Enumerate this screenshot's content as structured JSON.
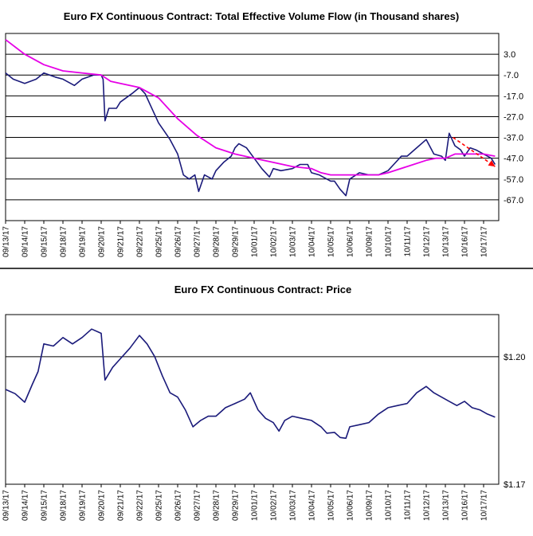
{
  "colors": {
    "price_line": "#1a1a7a",
    "flow_line": "#1a1a7a",
    "moving_average": "#e600e6",
    "trend_arrow": "#ff0000",
    "gridline": "#000000",
    "background": "#ffffff"
  },
  "chart_data": [
    {
      "type": "line",
      "title": "Euro FX Continuous Contract: Total Effective Volume Flow (in Thousand shares)",
      "xlabel": "",
      "ylabel": "",
      "y_ticks": [
        "3.0",
        "-7.0",
        "-17.0",
        "-27.0",
        "-37.0",
        "-47.0",
        "-57.0",
        "-67.0"
      ],
      "ylim": [
        -77,
        13
      ],
      "grid": true,
      "x_ticks": [
        "09/13/17",
        "09/14/17",
        "09/15/17",
        "09/18/17",
        "09/19/17",
        "09/20/17",
        "09/21/17",
        "09/22/17",
        "09/25/17",
        "09/26/17",
        "09/27/17",
        "09/28/17",
        "09/29/17",
        "10/01/17",
        "10/02/17",
        "10/03/17",
        "10/04/17",
        "10/05/17",
        "10/06/17",
        "10/09/17",
        "10/10/17",
        "10/11/17",
        "10/12/17",
        "10/13/17",
        "10/16/17",
        "10/17/17"
      ],
      "series": [
        {
          "role": "volume flow",
          "points": [
            [
              0,
              -6
            ],
            [
              0.4,
              -9
            ],
            [
              1.0,
              -11
            ],
            [
              1.6,
              -9
            ],
            [
              2.0,
              -6
            ],
            [
              2.6,
              -8
            ],
            [
              3.0,
              -9
            ],
            [
              3.6,
              -12
            ],
            [
              4.0,
              -9
            ],
            [
              4.6,
              -7
            ],
            [
              5.0,
              -7
            ],
            [
              5.1,
              -9
            ],
            [
              5.2,
              -29
            ],
            [
              5.4,
              -23
            ],
            [
              5.8,
              -23
            ],
            [
              6.0,
              -20
            ],
            [
              6.6,
              -16
            ],
            [
              7.0,
              -13
            ],
            [
              7.3,
              -16
            ],
            [
              7.6,
              -22
            ],
            [
              8.0,
              -30
            ],
            [
              8.3,
              -34
            ],
            [
              8.6,
              -38
            ],
            [
              9.0,
              -45
            ],
            [
              9.3,
              -55
            ],
            [
              9.6,
              -57
            ],
            [
              9.9,
              -55
            ],
            [
              10.1,
              -63
            ],
            [
              10.4,
              -55
            ],
            [
              10.8,
              -57
            ],
            [
              11.0,
              -53
            ],
            [
              11.4,
              -49
            ],
            [
              11.8,
              -46
            ],
            [
              12.0,
              -42
            ],
            [
              12.2,
              -40
            ],
            [
              12.6,
              -42
            ],
            [
              13.0,
              -47
            ],
            [
              13.4,
              -52
            ],
            [
              13.8,
              -56
            ],
            [
              14.0,
              -52
            ],
            [
              14.4,
              -53
            ],
            [
              15.0,
              -52
            ],
            [
              15.4,
              -50
            ],
            [
              15.8,
              -50
            ],
            [
              16.0,
              -54
            ],
            [
              16.4,
              -55
            ],
            [
              17.0,
              -58
            ],
            [
              17.2,
              -58
            ],
            [
              17.5,
              -62
            ],
            [
              17.8,
              -65
            ],
            [
              18.0,
              -57
            ],
            [
              18.5,
              -54
            ],
            [
              19.0,
              -55
            ],
            [
              19.5,
              -55
            ],
            [
              20.0,
              -53
            ],
            [
              20.3,
              -50
            ],
            [
              20.7,
              -46
            ],
            [
              21.0,
              -46
            ],
            [
              21.5,
              -42
            ],
            [
              22.0,
              -38
            ],
            [
              22.4,
              -45
            ],
            [
              22.8,
              -46
            ],
            [
              23.0,
              -48
            ],
            [
              23.2,
              -35
            ],
            [
              23.5,
              -41
            ],
            [
              23.8,
              -43
            ],
            [
              24.0,
              -46
            ],
            [
              24.3,
              -42
            ],
            [
              24.6,
              -43
            ],
            [
              25.0,
              -45
            ],
            [
              25.4,
              -47
            ],
            [
              25.6,
              -50
            ]
          ]
        },
        {
          "role": "moving average",
          "points": [
            [
              0,
              10
            ],
            [
              1.0,
              3
            ],
            [
              2.0,
              -2
            ],
            [
              3.0,
              -5
            ],
            [
              4.0,
              -6
            ],
            [
              5.0,
              -7
            ],
            [
              5.5,
              -10
            ],
            [
              6.0,
              -11
            ],
            [
              7.0,
              -13
            ],
            [
              8.0,
              -18
            ],
            [
              9.0,
              -28
            ],
            [
              10.0,
              -36
            ],
            [
              11.0,
              -42
            ],
            [
              12.0,
              -45
            ],
            [
              13.0,
              -47
            ],
            [
              14.0,
              -49
            ],
            [
              15.0,
              -51
            ],
            [
              16.0,
              -52
            ],
            [
              16.5,
              -54
            ],
            [
              17.0,
              -55
            ],
            [
              18.0,
              -55
            ],
            [
              19.0,
              -55
            ],
            [
              19.5,
              -55
            ],
            [
              20.0,
              -54
            ],
            [
              21.0,
              -51
            ],
            [
              22.0,
              -48
            ],
            [
              22.5,
              -47
            ],
            [
              23.0,
              -47
            ],
            [
              23.5,
              -45
            ],
            [
              24.0,
              -45
            ],
            [
              24.5,
              -45
            ],
            [
              25.0,
              -45
            ],
            [
              25.6,
              -46
            ]
          ]
        }
      ],
      "annotation": {
        "type": "arrow",
        "from": [
          23.4,
          -37
        ],
        "to": [
          25.6,
          -51
        ],
        "style": "dashed"
      }
    },
    {
      "type": "line",
      "title": "Euro FX Continuous Contract: Price",
      "xlabel": "",
      "ylabel": "",
      "y_ticks": [
        "$1.20",
        "$1.17"
      ],
      "ylim": [
        1.17,
        1.2099
      ],
      "grid": true,
      "x_ticks": [
        "09/13/17",
        "09/14/17",
        "09/15/17",
        "09/18/17",
        "09/19/17",
        "09/20/17",
        "09/21/17",
        "09/22/17",
        "09/25/17",
        "09/26/17",
        "09/27/17",
        "09/28/17",
        "09/29/17",
        "10/01/17",
        "10/02/17",
        "10/03/17",
        "10/04/17",
        "10/05/17",
        "10/06/17",
        "10/09/17",
        "10/10/17",
        "10/11/17",
        "10/12/17",
        "10/13/17",
        "10/16/17",
        "10/17/17"
      ],
      "series": [
        {
          "role": "price",
          "points": [
            [
              0,
              1.1923
            ],
            [
              0.5,
              1.1913
            ],
            [
              1.0,
              1.1893
            ],
            [
              1.4,
              1.1935
            ],
            [
              1.7,
              1.1965
            ],
            [
              2.0,
              1.203
            ],
            [
              2.5,
              1.2025
            ],
            [
              3.0,
              1.2045
            ],
            [
              3.5,
              1.203
            ],
            [
              4.0,
              1.2045
            ],
            [
              4.5,
              1.2065
            ],
            [
              5.0,
              1.2055
            ],
            [
              5.2,
              1.1945
            ],
            [
              5.6,
              1.1975
            ],
            [
              6.0,
              1.1995
            ],
            [
              6.5,
              1.202
            ],
            [
              7.0,
              1.205
            ],
            [
              7.4,
              1.203
            ],
            [
              7.8,
              1.2
            ],
            [
              8.2,
              1.1955
            ],
            [
              8.6,
              1.1915
            ],
            [
              9.0,
              1.1905
            ],
            [
              9.4,
              1.1875
            ],
            [
              9.8,
              1.1835
            ],
            [
              10.2,
              1.185
            ],
            [
              10.6,
              1.186
            ],
            [
              11.0,
              1.186
            ],
            [
              11.5,
              1.188
            ],
            [
              12.0,
              1.189
            ],
            [
              12.5,
              1.19
            ],
            [
              12.8,
              1.1915
            ],
            [
              13.2,
              1.1875
            ],
            [
              13.6,
              1.1855
            ],
            [
              14.0,
              1.1845
            ],
            [
              14.3,
              1.1825
            ],
            [
              14.6,
              1.185
            ],
            [
              15.0,
              1.186
            ],
            [
              15.5,
              1.1855
            ],
            [
              16.0,
              1.185
            ],
            [
              16.5,
              1.1835
            ],
            [
              16.8,
              1.182
            ],
            [
              17.2,
              1.1822
            ],
            [
              17.5,
              1.181
            ],
            [
              17.8,
              1.1808
            ],
            [
              18.0,
              1.1835
            ],
            [
              18.5,
              1.184
            ],
            [
              19.0,
              1.1845
            ],
            [
              19.5,
              1.1865
            ],
            [
              20.0,
              1.188
            ],
            [
              20.5,
              1.1885
            ],
            [
              21.0,
              1.189
            ],
            [
              21.5,
              1.1915
            ],
            [
              22.0,
              1.193
            ],
            [
              22.4,
              1.1915
            ],
            [
              22.8,
              1.1905
            ],
            [
              23.2,
              1.1895
            ],
            [
              23.6,
              1.1885
            ],
            [
              24.0,
              1.1895
            ],
            [
              24.4,
              1.188
            ],
            [
              24.8,
              1.1875
            ],
            [
              25.2,
              1.1865
            ],
            [
              25.6,
              1.1858
            ]
          ]
        }
      ]
    }
  ]
}
